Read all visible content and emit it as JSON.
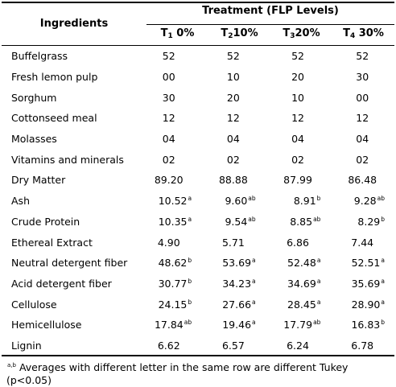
{
  "header": {
    "ingredients_label": "Ingredients",
    "treatment_label": "Treatment (FLP Levels)",
    "columns": [
      {
        "prefix": "T",
        "sub": "1",
        "suffix": " 0%"
      },
      {
        "prefix": "T",
        "sub": "2",
        "suffix": "10%"
      },
      {
        "prefix": "T",
        "sub": "3",
        "suffix": "20%"
      },
      {
        "prefix": "T",
        "sub": "4",
        "suffix": " 30%"
      }
    ]
  },
  "rows": [
    {
      "name": "Buffelgrass",
      "values": [
        {
          "v": "52",
          "s": ""
        },
        {
          "v": "52",
          "s": ""
        },
        {
          "v": "52",
          "s": ""
        },
        {
          "v": "52",
          "s": ""
        }
      ]
    },
    {
      "name": "Fresh lemon pulp",
      "values": [
        {
          "v": "00",
          "s": ""
        },
        {
          "v": "10",
          "s": ""
        },
        {
          "v": "20",
          "s": ""
        },
        {
          "v": "30",
          "s": ""
        }
      ]
    },
    {
      "name": "Sorghum",
      "values": [
        {
          "v": "30",
          "s": ""
        },
        {
          "v": "20",
          "s": ""
        },
        {
          "v": "10",
          "s": ""
        },
        {
          "v": "00",
          "s": ""
        }
      ]
    },
    {
      "name": "Cottonseed meal",
      "values": [
        {
          "v": "12",
          "s": ""
        },
        {
          "v": "12",
          "s": ""
        },
        {
          "v": "12",
          "s": ""
        },
        {
          "v": "12",
          "s": ""
        }
      ]
    },
    {
      "name": "Molasses",
      "values": [
        {
          "v": "04",
          "s": ""
        },
        {
          "v": "04",
          "s": ""
        },
        {
          "v": "04",
          "s": ""
        },
        {
          "v": "04",
          "s": ""
        }
      ]
    },
    {
      "name": "Vitamins and minerals",
      "values": [
        {
          "v": "02",
          "s": ""
        },
        {
          "v": "02",
          "s": ""
        },
        {
          "v": "02",
          "s": ""
        },
        {
          "v": "02",
          "s": ""
        }
      ]
    },
    {
      "name": "Dry Matter",
      "values": [
        {
          "v": "89.20",
          "s": ""
        },
        {
          "v": "88.88",
          "s": ""
        },
        {
          "v": "87.99",
          "s": ""
        },
        {
          "v": "86.48",
          "s": ""
        }
      ]
    },
    {
      "name": "Ash",
      "values": [
        {
          "v": "10.52",
          "s": "a"
        },
        {
          "v": "9.60",
          "s": "ab"
        },
        {
          "v": "8.91",
          "s": "b"
        },
        {
          "v": "9.28",
          "s": "ab"
        }
      ]
    },
    {
      "name": "Crude Protein",
      "values": [
        {
          "v": "10.35",
          "s": "a"
        },
        {
          "v": "9.54",
          "s": "ab"
        },
        {
          "v": "8.85",
          "s": "ab"
        },
        {
          "v": "8.29",
          "s": "b"
        }
      ]
    },
    {
      "name": "Ethereal Extract",
      "values": [
        {
          "v": "4.90",
          "s": ""
        },
        {
          "v": "5.71",
          "s": ""
        },
        {
          "v": "6.86",
          "s": ""
        },
        {
          "v": "7.44",
          "s": ""
        }
      ]
    },
    {
      "name": "Neutral detergent fiber",
      "values": [
        {
          "v": "48.62",
          "s": "b"
        },
        {
          "v": "53.69",
          "s": "a"
        },
        {
          "v": "52.48",
          "s": "a"
        },
        {
          "v": "52.51",
          "s": "a"
        }
      ]
    },
    {
      "name": "Acid detergent fiber",
      "values": [
        {
          "v": "30.77",
          "s": "b"
        },
        {
          "v": "34.23",
          "s": "a"
        },
        {
          "v": "34.69",
          "s": "a"
        },
        {
          "v": "35.69",
          "s": "a"
        }
      ]
    },
    {
      "name": "Cellulose",
      "values": [
        {
          "v": "24.15",
          "s": "b"
        },
        {
          "v": "27.66",
          "s": "a"
        },
        {
          "v": "28.45",
          "s": "a"
        },
        {
          "v": "28.90",
          "s": "a"
        }
      ]
    },
    {
      "name": "Hemicellulose",
      "values": [
        {
          "v": "17.84",
          "s": "ab"
        },
        {
          "v": "19.46",
          "s": "a"
        },
        {
          "v": "17.79",
          "s": "ab"
        },
        {
          "v": "16.83",
          "s": "b"
        }
      ]
    },
    {
      "name": "Lignin",
      "values": [
        {
          "v": "6.62",
          "s": ""
        },
        {
          "v": "6.57",
          "s": ""
        },
        {
          "v": "6.24",
          "s": ""
        },
        {
          "v": "6.78",
          "s": ""
        }
      ]
    }
  ],
  "footnote": {
    "marker": "a,b",
    "text": " Averages with different letter in the same row are different Tukey (p<0.05)"
  }
}
